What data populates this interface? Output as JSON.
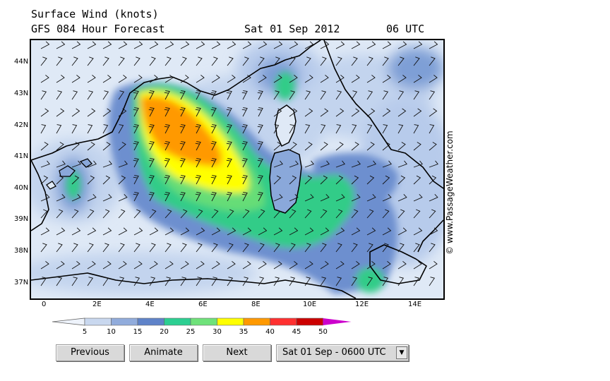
{
  "header": {
    "title": "Surface Wind (knots)",
    "model": "GFS 084 Hour Forecast",
    "date": "Sat 01 Sep 2012",
    "time": "06 UTC"
  },
  "map": {
    "lat_labels": [
      "44N",
      "43N",
      "42N",
      "41N",
      "40N",
      "39N",
      "38N",
      "37N"
    ],
    "lon_labels": [
      "0",
      "2E",
      "4E",
      "6E",
      "8E",
      "10E",
      "12E",
      "14E"
    ],
    "lat_range": [
      36.5,
      44.6
    ],
    "lon_range": [
      -0.5,
      15.0
    ],
    "barb_direction": "northwest (mistral)"
  },
  "credit": "© www.PassageWeather.com",
  "legend": {
    "labels": [
      "5",
      "10",
      "15",
      "20",
      "25",
      "30",
      "35",
      "40",
      "45",
      "50"
    ],
    "colors": [
      "#eef3fb",
      "#c9d8ef",
      "#91acdc",
      "#5f83c9",
      "#2ccf92",
      "#6fe27a",
      "#ffff00",
      "#ff9900",
      "#ff3030",
      "#cc0000",
      "#cc00cc"
    ]
  },
  "controls": {
    "previous": "Previous",
    "animate": "Animate",
    "next": "Next",
    "selected_time": "Sat 01 Sep - 0600 UTC"
  }
}
